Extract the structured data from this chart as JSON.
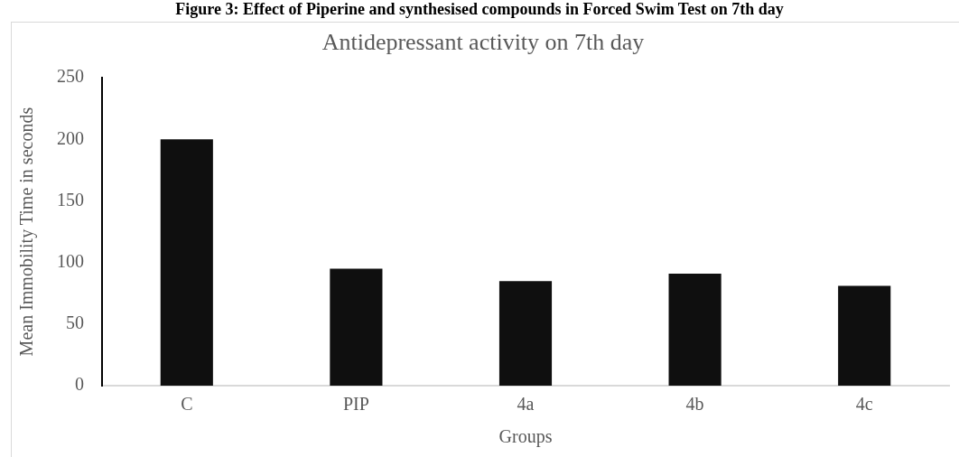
{
  "chart_data": {
    "type": "bar",
    "title": "Antidepressant activity on 7th day",
    "xlabel": "Groups",
    "ylabel": "Mean Immobility Time in seconds",
    "annotations": [
      "Figure 3: Effect of Piperine and synthesised compounds in Forced Swim Test on 7th day"
    ],
    "categories": [
      "C",
      "PIP",
      "4a",
      "4b",
      "4c"
    ],
    "values": [
      200,
      95,
      85,
      91,
      81
    ],
    "color": "#0f0f0f",
    "ylim": [
      0,
      250
    ],
    "yticks": [
      0,
      50,
      100,
      150,
      200,
      250
    ],
    "grid": false,
    "legend": false
  }
}
